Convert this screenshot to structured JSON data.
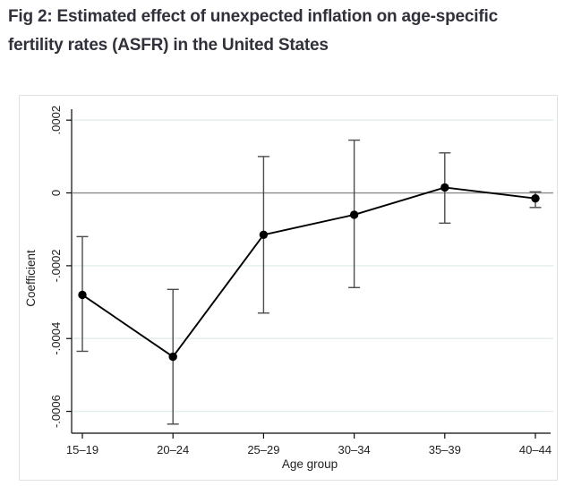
{
  "figure": {
    "title": "Fig 2: Estimated effect of unexpected inflation on age-specific fertility rates (ASFR) in the United States"
  },
  "chart_data": {
    "type": "line",
    "subtype": "coefficient-plot-with-ci-error-bars",
    "title": "",
    "xlabel": "Age group",
    "ylabel": "Coefficient",
    "categories": [
      "15–19",
      "20–24",
      "25–29",
      "30–34",
      "35–39",
      "40–44"
    ],
    "series": [
      {
        "name": "coefficient",
        "values": [
          -0.00028,
          -0.00045,
          -0.000115,
          -6e-05,
          1.5e-05,
          -1.5e-05
        ]
      },
      {
        "name": "ci_lower",
        "values": [
          -0.000435,
          -0.000635,
          -0.00033,
          -0.00026,
          -8.3e-05,
          -4e-05
        ]
      },
      {
        "name": "ci_upper",
        "values": [
          -0.00012,
          -0.000265,
          0.0001,
          0.000145,
          0.00011,
          3e-06
        ]
      }
    ],
    "yticks": [
      {
        "label": ".0002",
        "value": 0.0002
      },
      {
        "label": "0",
        "value": 0
      },
      {
        "label": "-.0002",
        "value": -0.0002
      },
      {
        "label": "-.0004",
        "value": -0.0004
      },
      {
        "label": "-.0006",
        "value": -0.0006
      }
    ],
    "ylim": [
      -0.00066,
      0.00023
    ],
    "grid": true,
    "zero_reference_line": true,
    "legend": "none",
    "colors": {
      "line": "#000000",
      "marker": "#000000",
      "error_bar": "#4d4d4d",
      "gridline": "#e3eeea",
      "zero_line": "#8c8c8c",
      "axis": "#0a0a0a",
      "title_text": "#31313b",
      "figure_border": "#e2e2e2"
    }
  }
}
